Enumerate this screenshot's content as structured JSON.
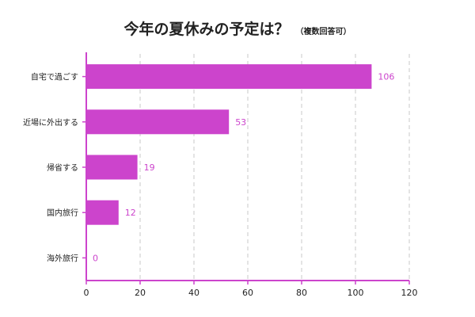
{
  "colors": {
    "bar": "#cc44cc",
    "axis": "#cc44cc",
    "grid": "#c8c8c8",
    "value_label": "#cc44cc",
    "text": "#222222"
  },
  "chart_data": {
    "type": "bar",
    "orientation": "horizontal",
    "title": "今年の夏休みの予定は？",
    "subtitle": "（複数回答可）",
    "categories": [
      "自宅で過ごす",
      "近場に外出する",
      "帰省する",
      "国内旅行",
      "海外旅行"
    ],
    "values": [
      106,
      53,
      19,
      12,
      0
    ],
    "xlim": [
      0,
      120
    ],
    "xticks": [
      0,
      20,
      40,
      60,
      80,
      100,
      120
    ],
    "grid": "vertical dashed",
    "legend": "none",
    "data_labels": true
  }
}
